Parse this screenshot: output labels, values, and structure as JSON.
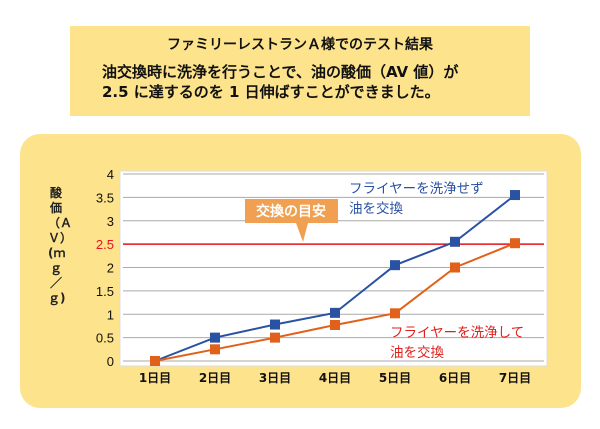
{
  "header": {
    "title": "ファミリーレストランＡ様でのテスト結果",
    "description_line1": "油交換時に洗浄を行うことで、油の酸価（AV 値）が",
    "description_line2": "2.5 に達するのを 1 日伸ばすことができました。"
  },
  "chart_data": {
    "type": "line",
    "ylabel": "酸価（ＡＶ）(ｍｇ／ｇ)",
    "ylim": [
      0,
      4
    ],
    "yticks": [
      "0",
      "0.5",
      "1",
      "1.5",
      "2",
      "2.5",
      "3",
      "3.5",
      "4"
    ],
    "categories": [
      "1日目",
      "2日目",
      "3日目",
      "4日目",
      "5日目",
      "6日目",
      "7日目"
    ],
    "series": [
      {
        "name": "フライヤーを洗浄せず油を交換",
        "label_line1": "フライヤーを洗浄せず",
        "label_line2": "油を交換",
        "color": "#2a52a3",
        "values": [
          0,
          0.5,
          0.78,
          1.03,
          2.05,
          2.55,
          3.55
        ]
      },
      {
        "name": "フライヤーを洗浄して油を交換",
        "label_line1": "フライヤーを洗浄して",
        "label_line2": "油を交換",
        "color": "#e2611a",
        "label_color": "#e0201c",
        "values": [
          0,
          0.25,
          0.5,
          0.77,
          1.02,
          2.0,
          2.52
        ]
      }
    ],
    "threshold": {
      "value": 2.5,
      "color": "#e8121c",
      "label": "交換の目安",
      "label_color": "#f0a050"
    },
    "grid": true
  }
}
